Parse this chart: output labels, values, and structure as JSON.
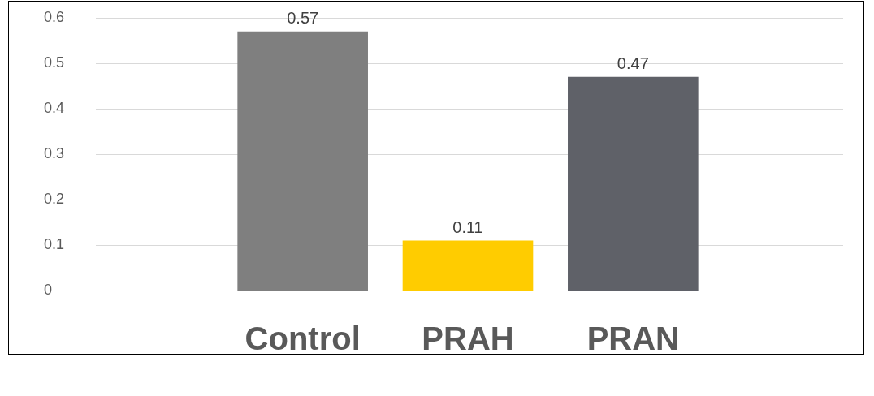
{
  "chart_data": {
    "type": "bar",
    "categories": [
      "Control",
      "PRAH",
      "PRAN"
    ],
    "values": [
      0.57,
      0.11,
      0.47
    ],
    "colors": [
      "#7f7f7f",
      "#ffcc00",
      "#5f6168"
    ],
    "ylim": [
      0,
      0.6
    ],
    "yticks": [
      0,
      0.1,
      0.2,
      0.3,
      0.4,
      0.5,
      0.6
    ],
    "grid": "y",
    "legend": false,
    "data_labels": true
  }
}
